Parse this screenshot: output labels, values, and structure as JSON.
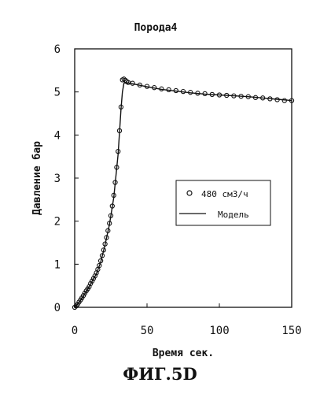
{
  "chart_data": {
    "type": "scatter",
    "title": "Порода4",
    "xlabel": "Время сек.",
    "ylabel": "Давление бар",
    "xlim": [
      0,
      150
    ],
    "ylim": [
      0,
      6
    ],
    "xticks": [
      0,
      50,
      100,
      150
    ],
    "yticks": [
      0,
      1,
      2,
      3,
      4,
      5,
      6
    ],
    "grid": false,
    "legend_position": "right",
    "series": [
      {
        "name": "480 см3/ч",
        "style": "markers",
        "marker": "open-circle",
        "x": [
          0,
          1,
          2,
          3,
          4,
          5,
          6,
          7,
          8,
          9,
          10,
          11,
          12,
          13,
          14,
          15,
          16,
          17,
          18,
          19,
          20,
          21,
          22,
          23,
          24,
          25,
          26,
          27,
          28,
          29,
          30,
          31,
          32,
          33,
          34,
          35,
          36,
          37,
          40,
          45,
          50,
          55,
          60,
          65,
          70,
          75,
          80,
          85,
          90,
          95,
          100,
          105,
          110,
          115,
          120,
          125,
          130,
          135,
          140,
          145,
          150
        ],
        "y": [
          0.0,
          0.03,
          0.07,
          0.12,
          0.17,
          0.22,
          0.27,
          0.33,
          0.38,
          0.43,
          0.48,
          0.55,
          0.61,
          0.67,
          0.73,
          0.8,
          0.88,
          0.97,
          1.08,
          1.2,
          1.33,
          1.47,
          1.62,
          1.78,
          1.95,
          2.13,
          2.35,
          2.6,
          2.9,
          3.25,
          3.62,
          4.1,
          4.65,
          5.28,
          5.3,
          5.27,
          5.24,
          5.22,
          5.2,
          5.16,
          5.13,
          5.1,
          5.07,
          5.05,
          5.03,
          5.01,
          4.99,
          4.97,
          4.96,
          4.94,
          4.93,
          4.92,
          4.91,
          4.9,
          4.89,
          4.87,
          4.86,
          4.84,
          4.82,
          4.8,
          4.8
        ]
      },
      {
        "name": "Модель",
        "style": "line",
        "x": [
          0,
          3,
          6,
          9,
          12,
          15,
          18,
          21,
          24,
          27,
          30,
          32,
          33,
          34,
          35,
          40,
          50,
          60,
          70,
          80,
          90,
          100,
          110,
          120,
          130,
          140,
          150
        ],
        "y": [
          0.0,
          0.11,
          0.26,
          0.42,
          0.6,
          0.78,
          1.05,
          1.45,
          1.92,
          2.55,
          3.55,
          4.6,
          5.0,
          5.2,
          5.22,
          5.19,
          5.12,
          5.06,
          5.02,
          4.98,
          4.95,
          4.93,
          4.91,
          4.89,
          4.86,
          4.83,
          4.8
        ]
      }
    ]
  },
  "figure_caption": "ФИГ.5D"
}
